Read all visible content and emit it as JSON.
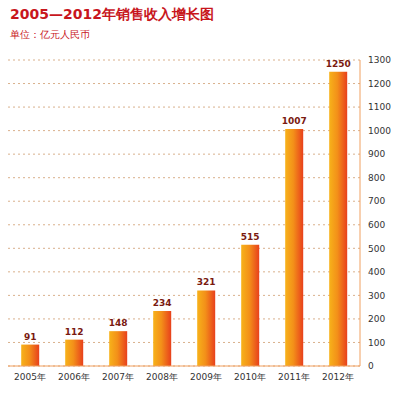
{
  "chart_data": {
    "type": "bar",
    "title": "2005—2012年销售收入增长图",
    "subtitle": "单位：亿元人民币",
    "categories": [
      "2005年",
      "2006年",
      "2007年",
      "2008年",
      "2009年",
      "2010年",
      "2011年",
      "2012年"
    ],
    "values": [
      91,
      112,
      148,
      234,
      321,
      515,
      1007,
      1250
    ],
    "color": "#e8401c",
    "ylim": [
      0,
      1300
    ],
    "yticks": [
      0,
      100,
      200,
      300,
      400,
      500,
      600,
      700,
      800,
      900,
      1000,
      1100,
      1200,
      1300
    ],
    "grid": true,
    "data_labels": true
  }
}
